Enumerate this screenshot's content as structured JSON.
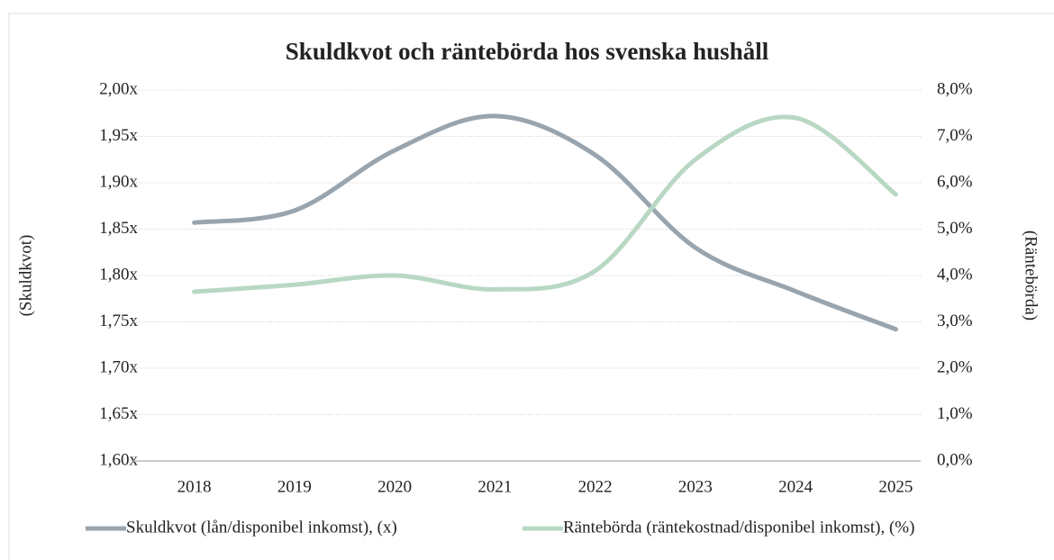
{
  "chart_data": {
    "type": "line",
    "title": "Skuldkvot och räntebörda hos svenska hushåll",
    "categories": [
      "2018",
      "2019",
      "2020",
      "2021",
      "2022",
      "2023",
      "2024",
      "2025"
    ],
    "series": [
      {
        "name": "Skuldkvot (lån/disponibel inkomst), (x)",
        "color": "#98a4ae",
        "values": [
          1.857,
          1.87,
          1.935,
          1.972,
          1.93,
          1.83,
          1.783,
          1.742
        ]
      },
      {
        "name": "Räntebörda (räntekostnad/disponibel inkomst), (%)",
        "color": "#b9d8c4",
        "axis": "y2",
        "values": [
          3.65,
          3.8,
          4.0,
          3.7,
          4.1,
          6.5,
          7.4,
          5.75
        ]
      }
    ],
    "ylabel": "(Skuldkvot)",
    "y2label": "(Räntebörda)",
    "ylim": [
      1.6,
      2.0
    ],
    "yticks": [
      {
        "value": 1.6,
        "label": "1,60x"
      },
      {
        "value": 1.65,
        "label": "1,65x"
      },
      {
        "value": 1.7,
        "label": "1,70x"
      },
      {
        "value": 1.75,
        "label": "1,75x"
      },
      {
        "value": 1.8,
        "label": "1,80x"
      },
      {
        "value": 1.85,
        "label": "1,85x"
      },
      {
        "value": 1.9,
        "label": "1,90x"
      },
      {
        "value": 1.95,
        "label": "1,95x"
      },
      {
        "value": 2.0,
        "label": "2,00x"
      }
    ],
    "y2lim": [
      0,
      8
    ],
    "y2ticks": [
      {
        "value": 0,
        "label": "0,0%"
      },
      {
        "value": 1,
        "label": "1,0%"
      },
      {
        "value": 2,
        "label": "2,0%"
      },
      {
        "value": 3,
        "label": "3,0%"
      },
      {
        "value": 4,
        "label": "4,0%"
      },
      {
        "value": 5,
        "label": "5,0%"
      },
      {
        "value": 6,
        "label": "6,0%"
      },
      {
        "value": 7,
        "label": "7,0%"
      },
      {
        "value": 8,
        "label": "8,0%"
      }
    ],
    "grid": true,
    "legend": "bottom"
  }
}
